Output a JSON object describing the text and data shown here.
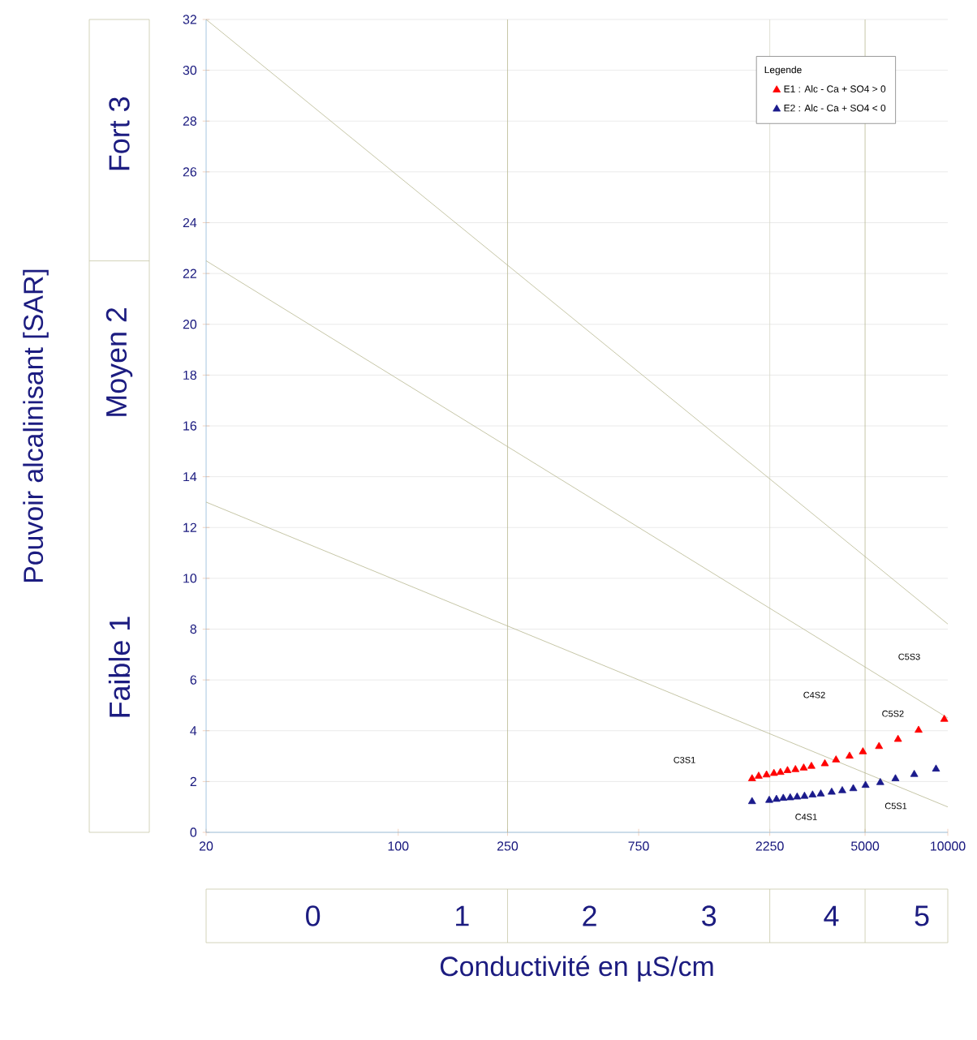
{
  "chart_data": {
    "type": "scatter",
    "xlabel": "Conductivité en µS/cm",
    "ylabel": "Pouvoir alcalinisant [SAR]",
    "legend_title": "Legende",
    "log": "x",
    "xlim": [
      20,
      10000
    ],
    "ylim": [
      0,
      32
    ],
    "xticks": [
      20,
      100,
      250,
      750,
      2250,
      5000,
      10000
    ],
    "yticks": [
      0,
      2,
      4,
      6,
      8,
      10,
      12,
      14,
      16,
      18,
      20,
      22,
      24,
      26,
      28,
      30,
      32
    ],
    "grid": "y",
    "legend": "top right",
    "series": [
      {
        "type": "line",
        "color": "#b8b890",
        "line_style": "solid",
        "x": [
          20,
          10000
        ],
        "values": [
          32,
          8.2
        ]
      },
      {
        "type": "line",
        "color": "#b8b890",
        "line_style": "solid",
        "x": [
          20,
          10000
        ],
        "values": [
          22.5,
          4.5
        ]
      },
      {
        "type": "line",
        "color": "#b8b890",
        "line_style": "solid",
        "x": [
          20,
          10000
        ],
        "values": [
          13,
          1.0
        ]
      },
      {
        "name": "E1 : Alc - Ca + SO4 > 0",
        "color": "#ff0000",
        "marker": "triangle",
        "x": [
          1940,
          2050,
          2190,
          2330,
          2460,
          2610,
          2790,
          2990,
          3190,
          3570,
          3920,
          4390,
          4910,
          5620,
          6590,
          7830,
          9710
        ],
        "values": [
          2.11,
          2.21,
          2.26,
          2.32,
          2.36,
          2.43,
          2.47,
          2.53,
          2.6,
          2.7,
          2.85,
          3.0,
          3.17,
          3.38,
          3.66,
          4.02,
          4.45
        ]
      },
      {
        "name": "E2 : Alc - Ca + SO4 < 0",
        "color": "#1a1a8c",
        "marker": "triangle",
        "x": [
          1940,
          2240,
          2380,
          2520,
          2670,
          2830,
          3010,
          3220,
          3450,
          3780,
          4130,
          4530,
          5020,
          5680,
          6450,
          7550,
          9060
        ],
        "values": [
          1.21,
          1.26,
          1.3,
          1.34,
          1.36,
          1.39,
          1.42,
          1.47,
          1.51,
          1.58,
          1.64,
          1.72,
          1.85,
          1.96,
          2.11,
          2.28,
          2.49
        ]
      }
    ],
    "ref_lines": [
      {
        "axis": "x",
        "value": 250,
        "color": "#b8b890"
      },
      {
        "axis": "x",
        "value": 2250,
        "color": "#d8d8c8"
      },
      {
        "axis": "x",
        "value": 5000,
        "color": "#b8b890"
      }
    ],
    "annotations": [
      "C3S1",
      "C4S2",
      "C5S3",
      "C5S2",
      "C4S1",
      "C5S1",
      "0",
      "1",
      "2",
      "3",
      "4",
      "5",
      "Faible 1",
      "Moyen 2",
      "Fort 3"
    ]
  }
}
